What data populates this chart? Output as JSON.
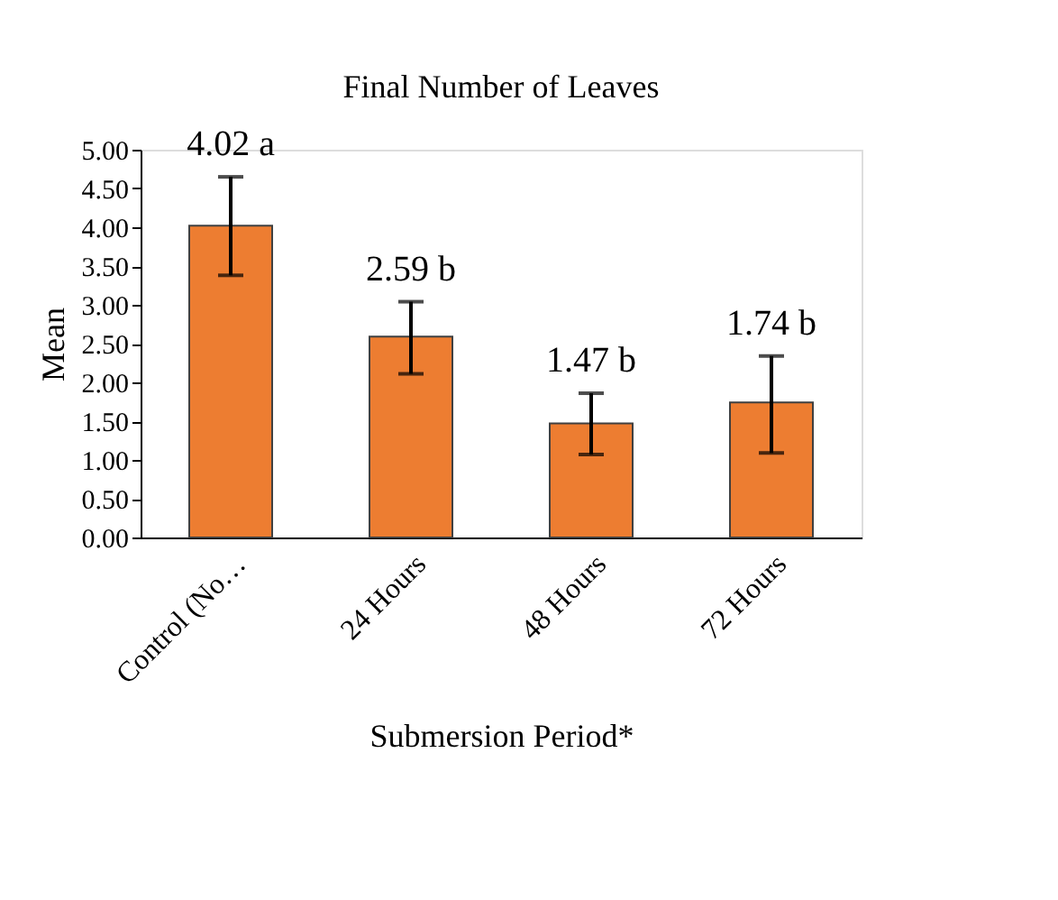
{
  "chart_data": {
    "type": "bar",
    "title": "Final Number of Leaves",
    "xlabel": "Submersion Period*",
    "ylabel": "Mean",
    "categories": [
      "Control (No…",
      "24  Hours",
      "48 Hours",
      "72 Hours"
    ],
    "series": [
      {
        "color": "#ed7d31",
        "values": [
          4.02,
          2.59,
          1.47,
          1.74
        ],
        "errors": [
          [
            3.38,
            4.65
          ],
          [
            2.11,
            3.04
          ],
          [
            1.07,
            1.86
          ],
          [
            1.09,
            2.34
          ]
        ],
        "value_labels": [
          "4.02 a",
          "2.59 b",
          "1.47 b",
          "1.74 b"
        ]
      }
    ],
    "ylim": [
      0,
      5
    ],
    "yticks": [
      {
        "value": 0,
        "label": "0.00"
      },
      {
        "value": 0.5,
        "label": "0.50"
      },
      {
        "value": 1,
        "label": "1.00"
      },
      {
        "value": 1.5,
        "label": "1.50"
      },
      {
        "value": 2,
        "label": "2.00"
      },
      {
        "value": 2.5,
        "label": "2.50"
      },
      {
        "value": 3,
        "label": "3.00"
      },
      {
        "value": 3.5,
        "label": "3.50"
      },
      {
        "value": 4,
        "label": "4.00"
      },
      {
        "value": 4.5,
        "label": "4.50"
      },
      {
        "value": 5,
        "label": "5.00"
      }
    ],
    "grid": false
  }
}
